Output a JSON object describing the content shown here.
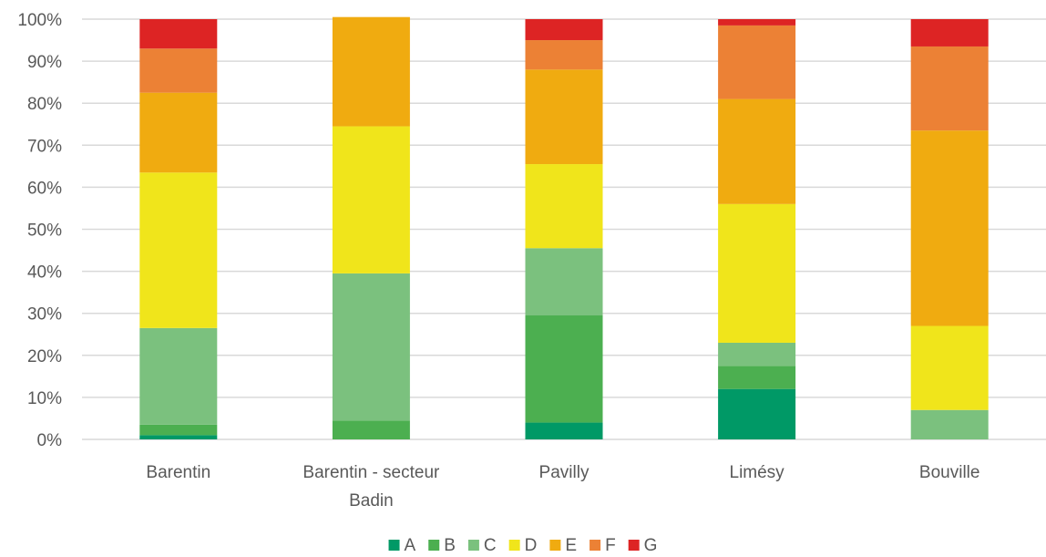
{
  "chart_data": {
    "type": "bar",
    "stacked": true,
    "percent": true,
    "categories": [
      [
        "Barentin"
      ],
      [
        "Barentin - secteur",
        "Badin"
      ],
      [
        "Pavilly"
      ],
      [
        "Limésy"
      ],
      [
        "Bouville"
      ]
    ],
    "series": [
      {
        "name": "A",
        "color": "#009966",
        "values": [
          1,
          0,
          4,
          12,
          0
        ]
      },
      {
        "name": "B",
        "color": "#4caf50",
        "values": [
          2.5,
          4.5,
          25.5,
          5.5,
          0
        ]
      },
      {
        "name": "C",
        "color": "#7bc17e",
        "values": [
          23,
          35,
          16,
          5.5,
          7
        ]
      },
      {
        "name": "D",
        "color": "#f0e51b",
        "values": [
          37,
          35,
          20,
          33,
          20
        ]
      },
      {
        "name": "E",
        "color": "#f0ab10",
        "values": [
          19,
          26,
          22.5,
          25,
          46.5
        ]
      },
      {
        "name": "F",
        "color": "#ec8135",
        "values": [
          10.5,
          0,
          7,
          17.5,
          20
        ]
      },
      {
        "name": "G",
        "color": "#dd2424",
        "values": [
          7,
          0,
          5,
          1.5,
          6.5
        ]
      }
    ],
    "y_ticks": [
      "0%",
      "10%",
      "20%",
      "30%",
      "40%",
      "50%",
      "60%",
      "70%",
      "80%",
      "90%",
      "100%"
    ],
    "ylim": [
      0,
      100
    ],
    "grid": true,
    "gridline_color": "#d9d9d9",
    "legend_position": "bottom",
    "title": "",
    "xlabel": "",
    "ylabel": ""
  }
}
